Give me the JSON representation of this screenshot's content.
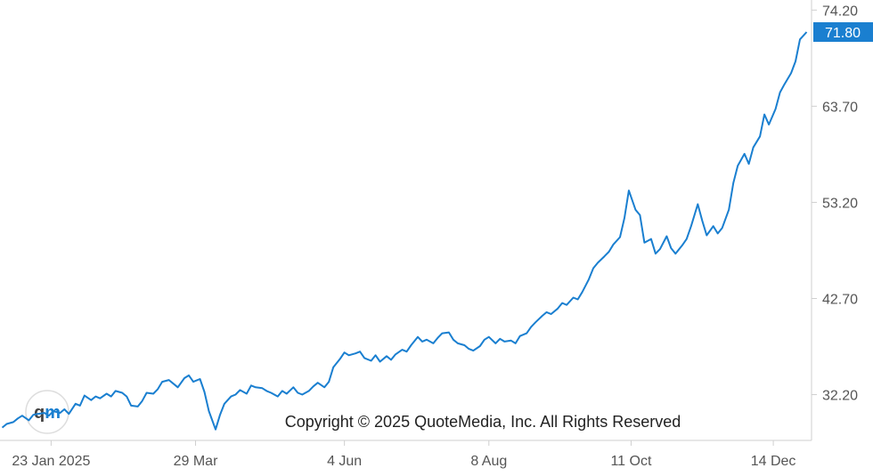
{
  "chart_data": {
    "type": "line",
    "series": [
      {
        "color": "#1a7fd0",
        "points": [
          [
            "2025-01-01",
            28.6
          ],
          [
            "2025-01-03",
            29.0
          ],
          [
            "2025-01-06",
            29.2
          ],
          [
            "2025-01-08",
            29.6
          ],
          [
            "2025-01-10",
            29.9
          ],
          [
            "2025-01-13",
            29.4
          ],
          [
            "2025-01-15",
            30.0
          ],
          [
            "2025-01-17",
            30.1
          ],
          [
            "2025-01-20",
            30.2
          ],
          [
            "2025-01-22",
            29.9
          ],
          [
            "2025-01-24",
            30.4
          ],
          [
            "2025-01-27",
            30.2
          ],
          [
            "2025-01-29",
            30.6
          ],
          [
            "2025-01-31",
            30.1
          ],
          [
            "2025-02-03",
            31.2
          ],
          [
            "2025-02-05",
            31.0
          ],
          [
            "2025-02-07",
            32.1
          ],
          [
            "2025-02-10",
            31.6
          ],
          [
            "2025-02-12",
            32.0
          ],
          [
            "2025-02-14",
            31.8
          ],
          [
            "2025-02-17",
            32.3
          ],
          [
            "2025-02-19",
            32.0
          ],
          [
            "2025-02-21",
            32.6
          ],
          [
            "2025-02-24",
            32.4
          ],
          [
            "2025-02-26",
            32.0
          ],
          [
            "2025-02-28",
            31.0
          ],
          [
            "2025-03-03",
            30.9
          ],
          [
            "2025-03-05",
            31.5
          ],
          [
            "2025-03-07",
            32.4
          ],
          [
            "2025-03-10",
            32.3
          ],
          [
            "2025-03-12",
            32.8
          ],
          [
            "2025-03-14",
            33.6
          ],
          [
            "2025-03-17",
            33.8
          ],
          [
            "2025-03-19",
            33.4
          ],
          [
            "2025-03-21",
            33.0
          ],
          [
            "2025-03-24",
            34.0
          ],
          [
            "2025-03-26",
            34.3
          ],
          [
            "2025-03-28",
            33.6
          ],
          [
            "2025-03-31",
            33.9
          ],
          [
            "2025-04-02",
            32.5
          ],
          [
            "2025-04-04",
            30.4
          ],
          [
            "2025-04-07",
            28.4
          ],
          [
            "2025-04-09",
            30.0
          ],
          [
            "2025-04-11",
            31.2
          ],
          [
            "2025-04-14",
            32.0
          ],
          [
            "2025-04-16",
            32.2
          ],
          [
            "2025-04-18",
            32.7
          ],
          [
            "2025-04-21",
            32.3
          ],
          [
            "2025-04-23",
            33.2
          ],
          [
            "2025-04-25",
            33.0
          ],
          [
            "2025-04-28",
            32.9
          ],
          [
            "2025-04-30",
            32.6
          ],
          [
            "2025-05-02",
            32.4
          ],
          [
            "2025-05-05",
            32.0
          ],
          [
            "2025-05-07",
            32.6
          ],
          [
            "2025-05-09",
            32.3
          ],
          [
            "2025-05-12",
            33.0
          ],
          [
            "2025-05-14",
            32.4
          ],
          [
            "2025-05-16",
            32.2
          ],
          [
            "2025-05-19",
            32.6
          ],
          [
            "2025-05-21",
            33.1
          ],
          [
            "2025-05-23",
            33.5
          ],
          [
            "2025-05-26",
            33.0
          ],
          [
            "2025-05-28",
            33.6
          ],
          [
            "2025-05-30",
            35.2
          ],
          [
            "2025-06-02",
            36.1
          ],
          [
            "2025-06-04",
            36.8
          ],
          [
            "2025-06-06",
            36.5
          ],
          [
            "2025-06-09",
            36.7
          ],
          [
            "2025-06-11",
            36.9
          ],
          [
            "2025-06-13",
            36.2
          ],
          [
            "2025-06-16",
            35.9
          ],
          [
            "2025-06-18",
            36.5
          ],
          [
            "2025-06-20",
            35.8
          ],
          [
            "2025-06-23",
            36.4
          ],
          [
            "2025-06-25",
            36.0
          ],
          [
            "2025-06-27",
            36.6
          ],
          [
            "2025-06-30",
            37.1
          ],
          [
            "2025-07-02",
            36.9
          ],
          [
            "2025-07-04",
            37.6
          ],
          [
            "2025-07-07",
            38.5
          ],
          [
            "2025-07-09",
            38.0
          ],
          [
            "2025-07-11",
            38.2
          ],
          [
            "2025-07-14",
            37.8
          ],
          [
            "2025-07-16",
            38.4
          ],
          [
            "2025-07-18",
            38.9
          ],
          [
            "2025-07-21",
            39.0
          ],
          [
            "2025-07-23",
            38.2
          ],
          [
            "2025-07-25",
            37.8
          ],
          [
            "2025-07-28",
            37.6
          ],
          [
            "2025-07-30",
            37.2
          ],
          [
            "2025-08-01",
            37.0
          ],
          [
            "2025-08-04",
            37.5
          ],
          [
            "2025-08-06",
            38.2
          ],
          [
            "2025-08-08",
            38.5
          ],
          [
            "2025-08-11",
            37.8
          ],
          [
            "2025-08-13",
            38.3
          ],
          [
            "2025-08-15",
            38.0
          ],
          [
            "2025-08-18",
            38.1
          ],
          [
            "2025-08-20",
            37.8
          ],
          [
            "2025-08-22",
            38.6
          ],
          [
            "2025-08-25",
            38.9
          ],
          [
            "2025-08-27",
            39.6
          ],
          [
            "2025-08-29",
            40.1
          ],
          [
            "2025-09-01",
            40.8
          ],
          [
            "2025-09-03",
            41.2
          ],
          [
            "2025-09-05",
            41.0
          ],
          [
            "2025-09-08",
            41.6
          ],
          [
            "2025-09-10",
            42.2
          ],
          [
            "2025-09-12",
            42.0
          ],
          [
            "2025-09-15",
            42.8
          ],
          [
            "2025-09-17",
            42.6
          ],
          [
            "2025-09-19",
            43.4
          ],
          [
            "2025-09-22",
            44.8
          ],
          [
            "2025-09-24",
            46.0
          ],
          [
            "2025-09-26",
            46.6
          ],
          [
            "2025-09-29",
            47.3
          ],
          [
            "2025-10-01",
            47.8
          ],
          [
            "2025-10-03",
            48.6
          ],
          [
            "2025-10-06",
            49.4
          ],
          [
            "2025-10-08",
            51.5
          ],
          [
            "2025-10-10",
            54.5
          ],
          [
            "2025-10-13",
            52.4
          ],
          [
            "2025-10-15",
            51.8
          ],
          [
            "2025-10-17",
            48.8
          ],
          [
            "2025-10-20",
            49.2
          ],
          [
            "2025-10-22",
            47.6
          ],
          [
            "2025-10-24",
            48.1
          ],
          [
            "2025-10-27",
            49.5
          ],
          [
            "2025-10-29",
            48.2
          ],
          [
            "2025-10-31",
            47.6
          ],
          [
            "2025-11-03",
            48.5
          ],
          [
            "2025-11-05",
            49.2
          ],
          [
            "2025-11-07",
            50.6
          ],
          [
            "2025-11-10",
            53.0
          ],
          [
            "2025-11-12",
            51.2
          ],
          [
            "2025-11-14",
            49.6
          ],
          [
            "2025-11-17",
            50.6
          ],
          [
            "2025-11-19",
            49.8
          ],
          [
            "2025-11-21",
            50.4
          ],
          [
            "2025-11-24",
            52.4
          ],
          [
            "2025-11-26",
            55.3
          ],
          [
            "2025-11-28",
            57.2
          ],
          [
            "2025-12-01",
            58.5
          ],
          [
            "2025-12-03",
            57.4
          ],
          [
            "2025-12-05",
            59.2
          ],
          [
            "2025-12-08",
            60.4
          ],
          [
            "2025-12-10",
            62.8
          ],
          [
            "2025-12-12",
            61.7
          ],
          [
            "2025-12-15",
            63.4
          ],
          [
            "2025-12-17",
            65.2
          ],
          [
            "2025-12-19",
            66.1
          ],
          [
            "2025-12-22",
            67.3
          ],
          [
            "2025-12-24",
            68.6
          ],
          [
            "2025-12-26",
            71.0
          ],
          [
            "2025-12-29",
            71.8
          ]
        ]
      }
    ],
    "x_ticks": [
      "23 Jan 2025",
      "29 Mar",
      "4 Jun",
      "8 Aug",
      "11 Oct",
      "14 Dec"
    ],
    "x_tick_dates": [
      "2025-01-23",
      "2025-03-29",
      "2025-06-04",
      "2025-08-08",
      "2025-10-11",
      "2025-12-14"
    ],
    "y_ticks": [
      "74.20",
      "63.70",
      "53.20",
      "42.70",
      "32.20"
    ],
    "last_value": "71.80",
    "y_range": [
      27.2,
      75.3
    ],
    "x_range": [
      "2024-12-31",
      "2025-12-30"
    ],
    "grid": false,
    "y_axis_side": "right"
  },
  "watermark": {
    "copyright": "Copyright © 2025 QuoteMedia, Inc. All Rights Reserved",
    "logo_text": "qm"
  }
}
